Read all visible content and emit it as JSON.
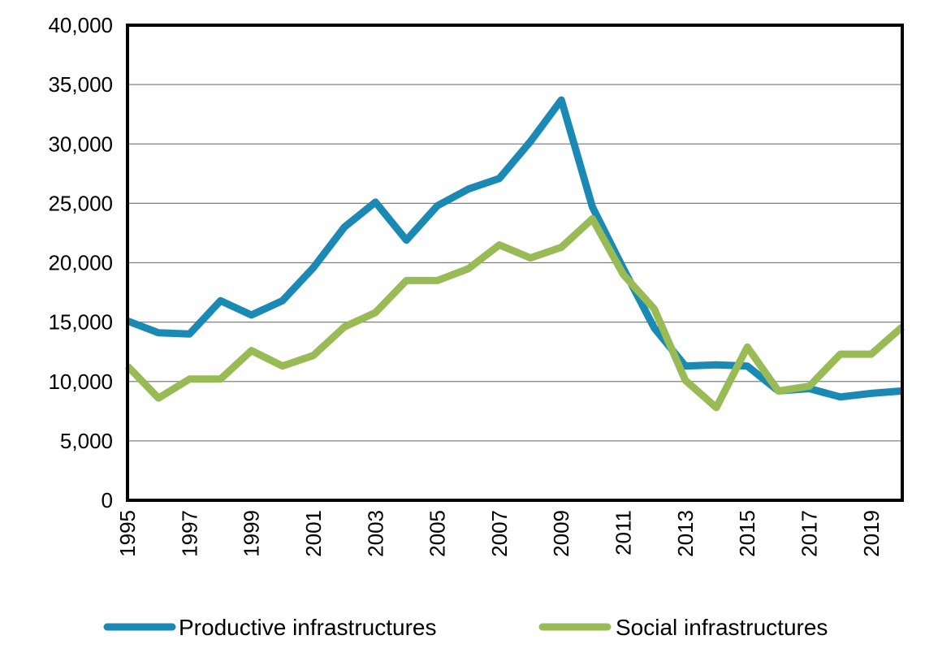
{
  "chart_data": {
    "type": "line",
    "title": "",
    "xlabel": "",
    "ylabel": "",
    "x": [
      1995,
      1996,
      1997,
      1998,
      1999,
      2000,
      2001,
      2002,
      2003,
      2004,
      2005,
      2006,
      2007,
      2008,
      2009,
      2010,
      2011,
      2012,
      2013,
      2014,
      2015,
      2016,
      2017,
      2018,
      2019,
      2020
    ],
    "x_tick_labels": [
      "1995",
      "1997",
      "1999",
      "2001",
      "2003",
      "2005",
      "2007",
      "2009",
      "2011",
      "2013",
      "2015",
      "2017",
      "2019"
    ],
    "y_tick_labels": [
      "0",
      "5,000",
      "10,000",
      "15,000",
      "20,000",
      "25,000",
      "30,000",
      "35,000",
      "40,000"
    ],
    "ylim": [
      0,
      40000
    ],
    "grid": true,
    "legend_position": "bottom",
    "series": [
      {
        "name": "Productive infrastructures",
        "color": "#1a8ab5",
        "values": [
          15100,
          14100,
          14000,
          16800,
          15600,
          16800,
          19600,
          23000,
          25100,
          21900,
          24800,
          26200,
          27100,
          30200,
          33700,
          24700,
          19500,
          14500,
          11300,
          11400,
          11300,
          9200,
          9400,
          8700,
          9000,
          9200
        ]
      },
      {
        "name": "Social infrastructures",
        "color": "#99bb55",
        "values": [
          11300,
          8600,
          10200,
          10200,
          12600,
          11300,
          12200,
          14600,
          15800,
          18500,
          18500,
          19500,
          21500,
          20400,
          21300,
          23700,
          19000,
          16100,
          10100,
          7800,
          12900,
          9200,
          9600,
          12300,
          12300,
          14600
        ]
      }
    ]
  }
}
